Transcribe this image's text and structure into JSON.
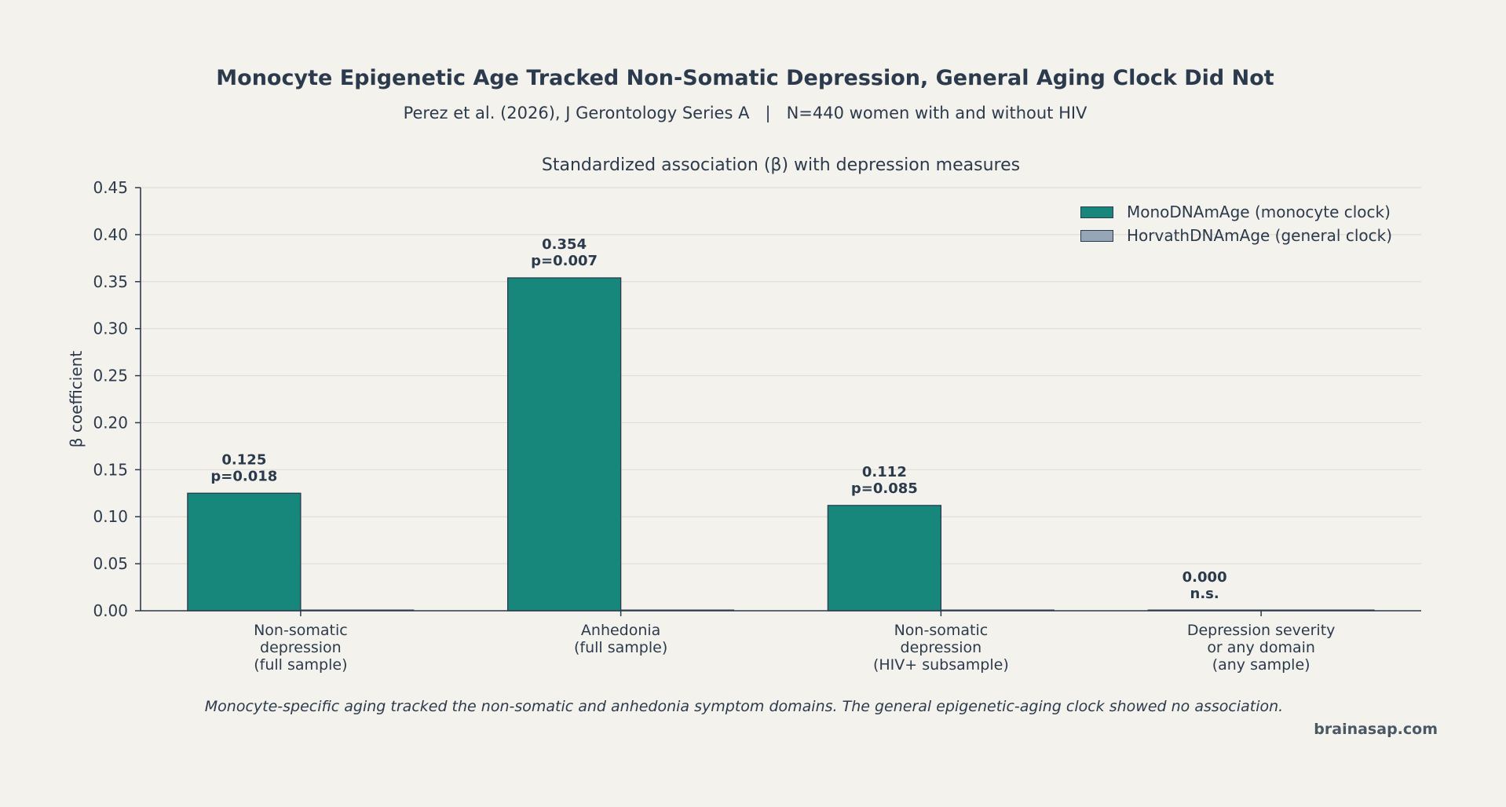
{
  "header": {
    "title": "Monocyte Epigenetic Age Tracked Non-Somatic Depression, General Aging Clock Did Not",
    "subtitle": "Perez et al. (2026), J Gerontology Series A   |   N=440 women with and without HIV"
  },
  "footer": {
    "caption": "Monocyte-specific aging tracked the non-somatic and anhedonia symptom domains. The general epigenetic-aging clock showed no association.",
    "watermark": "brainasap.com"
  },
  "chart_data": {
    "type": "bar",
    "title": "Standardized association (β) with depression measures",
    "xlabel": "",
    "ylabel": "β coefficient",
    "ylim": [
      0,
      0.45
    ],
    "yticks": [
      "0.00",
      "0.05",
      "0.10",
      "0.15",
      "0.20",
      "0.25",
      "0.30",
      "0.35",
      "0.40",
      "0.45"
    ],
    "grid": "horizontal",
    "legend_position": "top-right",
    "categories": [
      [
        "Non-somatic",
        "depression",
        "(full sample)"
      ],
      [
        "Anhedonia",
        "(full sample)"
      ],
      [
        "Non-somatic",
        "depression",
        "(HIV+ subsample)"
      ],
      [
        "Depression severity",
        "or any domain",
        "(any sample)"
      ]
    ],
    "series": [
      {
        "name": "MonoDNAmAge (monocyte clock)",
        "color": "#17877c",
        "values": [
          0.125,
          0.354,
          0.112,
          0.0
        ],
        "labels": [
          [
            "0.125",
            "p=0.018"
          ],
          [
            "0.354",
            "p=0.007"
          ],
          [
            "0.112",
            "p=0.085"
          ],
          [
            "0.000",
            "n.s."
          ]
        ]
      },
      {
        "name": "HorvathDNAmAge (general clock)",
        "color": "#97a6b6",
        "values": [
          0,
          0,
          0,
          0
        ]
      }
    ]
  }
}
